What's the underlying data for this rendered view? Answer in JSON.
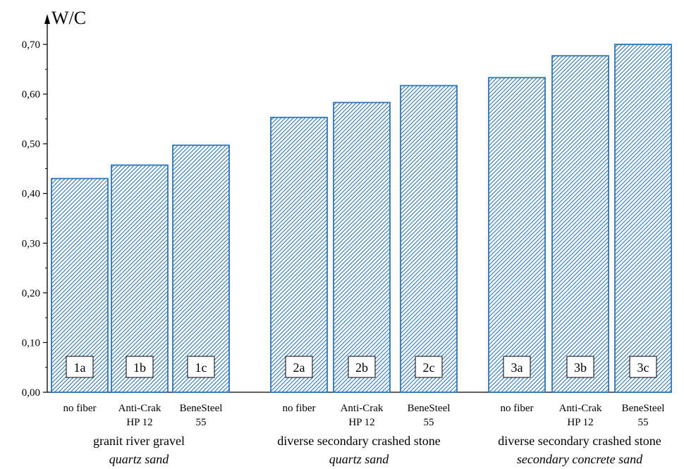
{
  "chart_data": {
    "type": "bar",
    "ylabel": "W/C",
    "ylim": [
      0,
      0.75
    ],
    "yticks": [
      "0,00",
      "0,10",
      "0,20",
      "0,30",
      "0,40",
      "0,50",
      "0,60",
      "0,70"
    ],
    "grid": false,
    "bar_color": "#2e75b6",
    "bars": [
      {
        "id": "1a",
        "lines": [
          "no fiber"
        ],
        "value": 0.43
      },
      {
        "id": "1b",
        "lines": [
          "Anti-Crak",
          "HP 12"
        ],
        "value": 0.457
      },
      {
        "id": "1c",
        "lines": [
          "BeneSteel",
          "55"
        ],
        "value": 0.497
      },
      {
        "id": "2a",
        "lines": [
          "no fiber"
        ],
        "value": 0.553
      },
      {
        "id": "2b",
        "lines": [
          "Anti-Crak",
          "HP 12"
        ],
        "value": 0.583
      },
      {
        "id": "2c",
        "lines": [
          "BeneSteel",
          "55"
        ],
        "value": 0.617
      },
      {
        "id": "3a",
        "lines": [
          "no fiber"
        ],
        "value": 0.633
      },
      {
        "id": "3b",
        "lines": [
          "Anti-Crak",
          "HP 12"
        ],
        "value": 0.677
      },
      {
        "id": "3c",
        "lines": [
          "BeneSteel",
          "55"
        ],
        "value": 0.7
      }
    ],
    "groups": [
      {
        "label": "granit river gravel",
        "sublabel": "quartz sand"
      },
      {
        "label": "diverse secondary crashed stone",
        "sublabel": "quartz sand"
      },
      {
        "label": "diverse secondary crashed stone",
        "sublabel": "secondary concrete sand"
      }
    ]
  }
}
